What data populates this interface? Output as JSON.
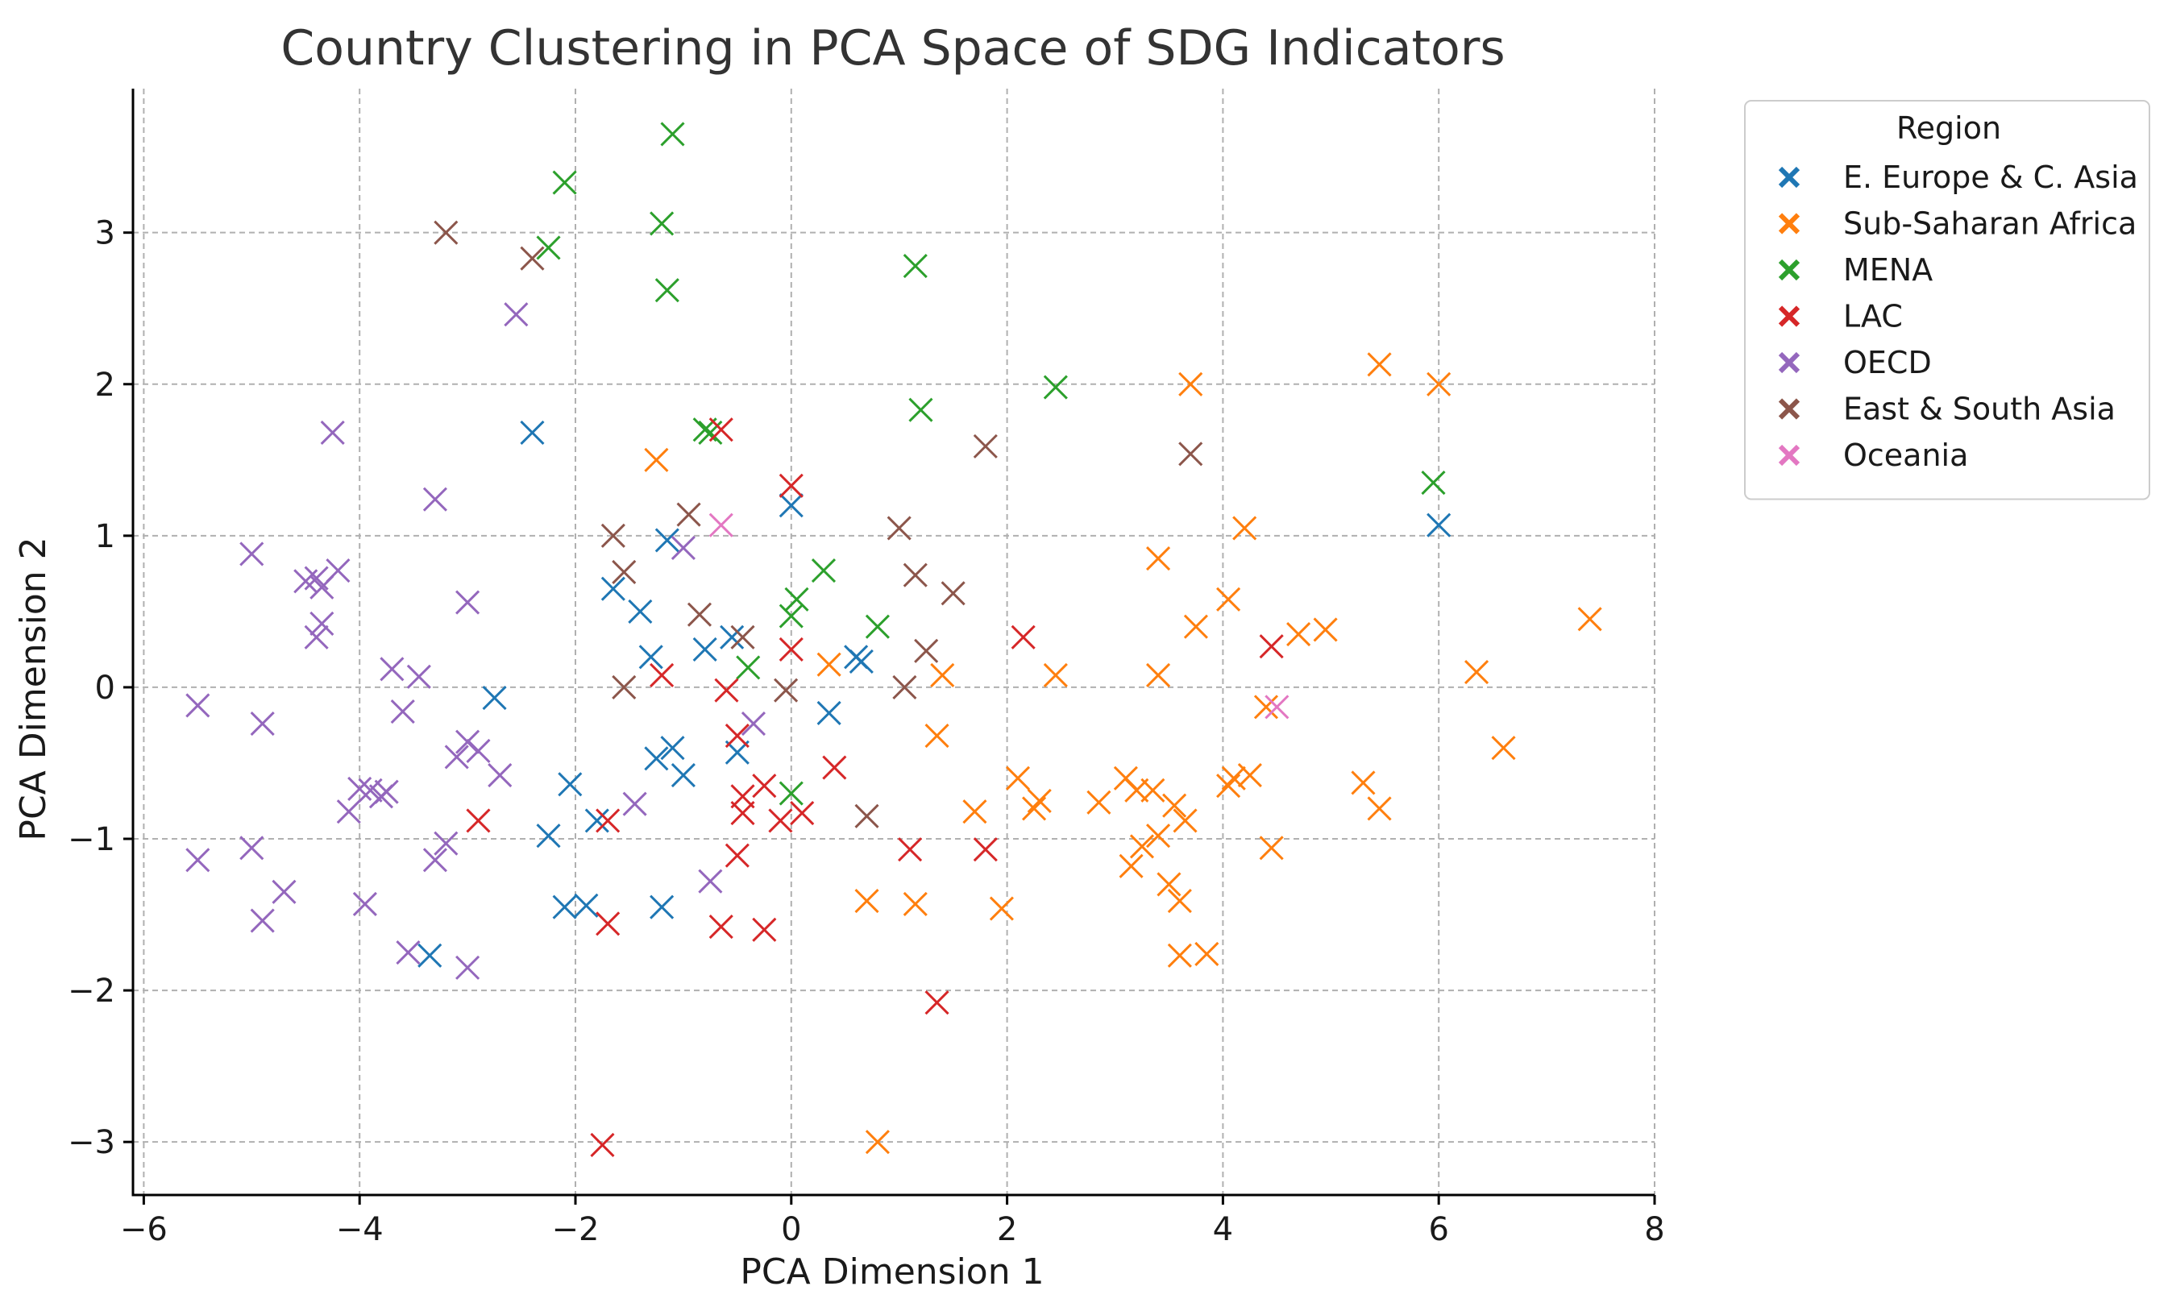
{
  "chart_data": {
    "type": "scatter",
    "title": "Country Clustering in PCA Space of SDG Indicators",
    "xlabel": "PCA Dimension 1",
    "ylabel": "PCA Dimension 2",
    "xlim": [
      -6.1,
      8.0
    ],
    "ylim": [
      -3.35,
      3.95
    ],
    "xticks": [
      -6,
      -4,
      -2,
      0,
      2,
      4,
      6,
      8
    ],
    "yticks": [
      -3,
      -2,
      -1,
      0,
      1,
      2,
      3
    ],
    "grid": true,
    "marker": "x",
    "legend": {
      "title": "Region",
      "position": "outside-top-right"
    },
    "series": [
      {
        "name": "E. Europe & C. Asia",
        "color": "#1f77b4",
        "points": [
          [
            -2.4,
            1.68
          ],
          [
            0.0,
            1.2
          ],
          [
            6.0,
            1.07
          ],
          [
            -1.15,
            0.97
          ],
          [
            -1.65,
            0.65
          ],
          [
            -1.4,
            0.5
          ],
          [
            -1.3,
            0.2
          ],
          [
            -0.8,
            0.25
          ],
          [
            -0.55,
            0.33
          ],
          [
            0.6,
            0.2
          ],
          [
            0.65,
            0.17
          ],
          [
            -2.75,
            -0.07
          ],
          [
            0.35,
            -0.17
          ],
          [
            -1.1,
            -0.4
          ],
          [
            -1.25,
            -0.47
          ],
          [
            -1.0,
            -0.58
          ],
          [
            -0.5,
            -0.43
          ],
          [
            -2.05,
            -0.64
          ],
          [
            -2.25,
            -0.98
          ],
          [
            -1.8,
            -0.88
          ],
          [
            -2.1,
            -1.45
          ],
          [
            -1.9,
            -1.44
          ],
          [
            -1.2,
            -1.45
          ],
          [
            -3.35,
            -1.77
          ]
        ]
      },
      {
        "name": "Sub-Saharan Africa",
        "color": "#ff7f0e",
        "points": [
          [
            5.45,
            2.13
          ],
          [
            3.7,
            2.0
          ],
          [
            6.0,
            2.0
          ],
          [
            -1.25,
            1.5
          ],
          [
            4.2,
            1.05
          ],
          [
            3.4,
            0.85
          ],
          [
            4.05,
            0.58
          ],
          [
            7.4,
            0.45
          ],
          [
            3.75,
            0.4
          ],
          [
            4.7,
            0.35
          ],
          [
            4.95,
            0.38
          ],
          [
            0.35,
            0.15
          ],
          [
            1.4,
            0.08
          ],
          [
            2.45,
            0.08
          ],
          [
            3.4,
            0.08
          ],
          [
            6.35,
            0.1
          ],
          [
            4.4,
            -0.13
          ],
          [
            1.35,
            -0.32
          ],
          [
            6.6,
            -0.4
          ],
          [
            2.1,
            -0.6
          ],
          [
            4.1,
            -0.6
          ],
          [
            4.25,
            -0.58
          ],
          [
            4.05,
            -0.65
          ],
          [
            5.3,
            -0.63
          ],
          [
            3.1,
            -0.6
          ],
          [
            3.2,
            -0.68
          ],
          [
            3.35,
            -0.68
          ],
          [
            2.3,
            -0.75
          ],
          [
            2.85,
            -0.76
          ],
          [
            2.25,
            -0.8
          ],
          [
            5.45,
            -0.8
          ],
          [
            1.7,
            -0.82
          ],
          [
            3.55,
            -0.78
          ],
          [
            3.65,
            -0.88
          ],
          [
            3.4,
            -0.98
          ],
          [
            3.25,
            -1.05
          ],
          [
            4.45,
            -1.06
          ],
          [
            3.15,
            -1.18
          ],
          [
            0.7,
            -1.41
          ],
          [
            1.15,
            -1.43
          ],
          [
            1.95,
            -1.46
          ],
          [
            3.5,
            -1.3
          ],
          [
            3.6,
            -1.41
          ],
          [
            3.6,
            -1.77
          ],
          [
            3.85,
            -1.76
          ],
          [
            0.8,
            -3.0
          ]
        ]
      },
      {
        "name": "MENA",
        "color": "#2ca02c",
        "points": [
          [
            -1.1,
            3.65
          ],
          [
            -2.1,
            3.33
          ],
          [
            -1.2,
            3.06
          ],
          [
            -2.25,
            2.9
          ],
          [
            1.15,
            2.78
          ],
          [
            -1.15,
            2.62
          ],
          [
            2.45,
            1.98
          ],
          [
            1.2,
            1.83
          ],
          [
            -0.8,
            1.7
          ],
          [
            -0.75,
            1.68
          ],
          [
            5.95,
            1.35
          ],
          [
            0.3,
            0.77
          ],
          [
            0.05,
            0.58
          ],
          [
            0.0,
            0.47
          ],
          [
            0.8,
            0.4
          ],
          [
            -0.4,
            0.13
          ],
          [
            0.0,
            -0.7
          ]
        ]
      },
      {
        "name": "LAC",
        "color": "#d62728",
        "points": [
          [
            -0.65,
            1.7
          ],
          [
            0.0,
            1.33
          ],
          [
            2.15,
            0.33
          ],
          [
            4.45,
            0.27
          ],
          [
            0.0,
            0.25
          ],
          [
            -1.2,
            0.08
          ],
          [
            -0.6,
            -0.02
          ],
          [
            -0.5,
            -0.32
          ],
          [
            0.4,
            -0.53
          ],
          [
            -0.25,
            -0.65
          ],
          [
            -0.45,
            -0.72
          ],
          [
            -2.9,
            -0.88
          ],
          [
            -1.7,
            -0.88
          ],
          [
            -0.45,
            -0.83
          ],
          [
            -0.1,
            -0.88
          ],
          [
            0.1,
            -0.83
          ],
          [
            1.1,
            -1.07
          ],
          [
            1.8,
            -1.07
          ],
          [
            -0.5,
            -1.11
          ],
          [
            -1.7,
            -1.56
          ],
          [
            -0.65,
            -1.58
          ],
          [
            -0.25,
            -1.6
          ],
          [
            1.35,
            -2.08
          ],
          [
            -1.75,
            -3.02
          ]
        ]
      },
      {
        "name": "OECD",
        "color": "#9467bd",
        "points": [
          [
            -2.55,
            2.46
          ],
          [
            -4.25,
            1.68
          ],
          [
            -3.3,
            1.24
          ],
          [
            -5.0,
            0.88
          ],
          [
            -4.2,
            0.77
          ],
          [
            -4.5,
            0.7
          ],
          [
            -4.4,
            0.72
          ],
          [
            -4.35,
            0.66
          ],
          [
            -4.35,
            0.42
          ],
          [
            -4.4,
            0.33
          ],
          [
            -1.0,
            0.92
          ],
          [
            -3.0,
            0.56
          ],
          [
            -3.7,
            0.12
          ],
          [
            -3.45,
            0.07
          ],
          [
            -5.5,
            -0.12
          ],
          [
            -4.9,
            -0.24
          ],
          [
            -3.6,
            -0.16
          ],
          [
            -3.0,
            -0.36
          ],
          [
            -0.35,
            -0.24
          ],
          [
            -3.1,
            -0.46
          ],
          [
            -2.9,
            -0.42
          ],
          [
            -2.7,
            -0.58
          ],
          [
            -4.0,
            -0.67
          ],
          [
            -3.9,
            -0.68
          ],
          [
            -3.8,
            -0.72
          ],
          [
            -3.75,
            -0.69
          ],
          [
            -4.1,
            -0.82
          ],
          [
            -1.45,
            -0.77
          ],
          [
            -3.2,
            -1.03
          ],
          [
            -3.3,
            -1.14
          ],
          [
            -5.5,
            -1.14
          ],
          [
            -5.0,
            -1.06
          ],
          [
            -4.7,
            -1.35
          ],
          [
            -4.9,
            -1.54
          ],
          [
            -0.75,
            -1.28
          ],
          [
            -3.95,
            -1.43
          ],
          [
            -3.55,
            -1.75
          ],
          [
            -3.0,
            -1.85
          ]
        ]
      },
      {
        "name": "East & South Asia",
        "color": "#8c564b",
        "points": [
          [
            -3.2,
            3.0
          ],
          [
            -2.4,
            2.83
          ],
          [
            1.8,
            1.59
          ],
          [
            3.7,
            1.54
          ],
          [
            -0.95,
            1.14
          ],
          [
            1.0,
            1.05
          ],
          [
            -1.65,
            1.0
          ],
          [
            -1.55,
            0.76
          ],
          [
            1.15,
            0.74
          ],
          [
            1.5,
            0.62
          ],
          [
            -0.85,
            0.48
          ],
          [
            -0.45,
            0.33
          ],
          [
            1.25,
            0.24
          ],
          [
            -1.55,
            0.0
          ],
          [
            1.05,
            0.0
          ],
          [
            -0.05,
            -0.02
          ],
          [
            0.7,
            -0.85
          ]
        ]
      },
      {
        "name": "Oceania",
        "color": "#e377c2",
        "points": [
          [
            -0.65,
            1.07
          ],
          [
            4.5,
            -0.13
          ]
        ]
      }
    ]
  }
}
